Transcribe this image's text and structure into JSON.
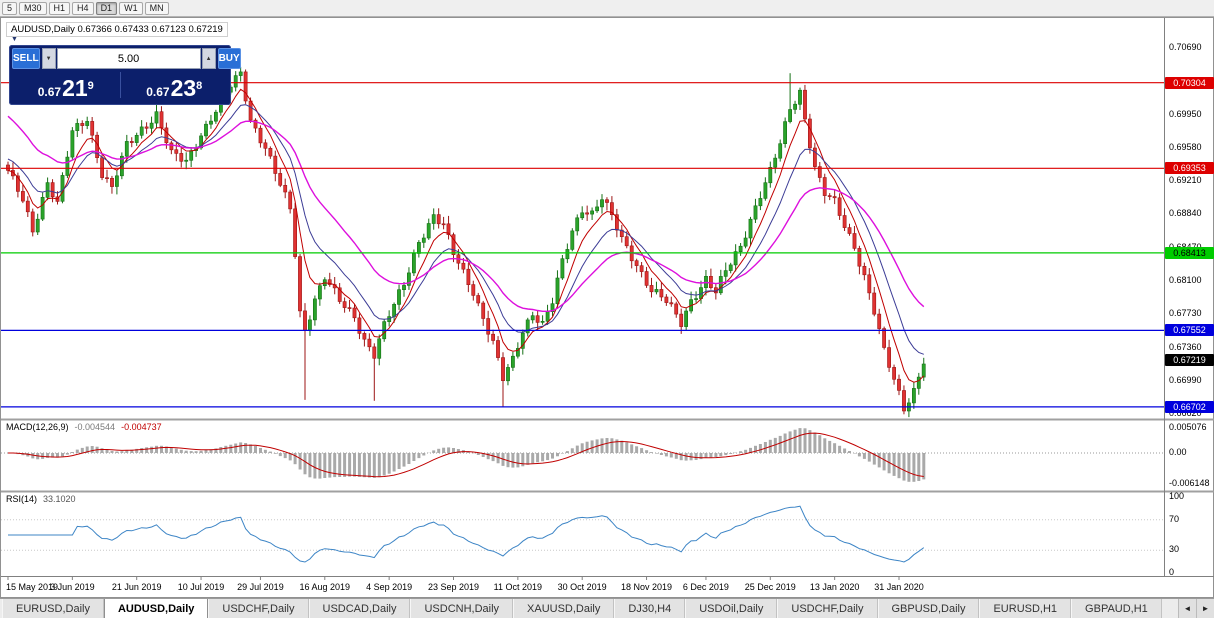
{
  "toolbar": {
    "timeframes": [
      {
        "label": "5",
        "active": false
      },
      {
        "label": "M30",
        "active": false
      },
      {
        "label": "H1",
        "active": false
      },
      {
        "label": "H4",
        "active": false
      },
      {
        "label": "D1",
        "active": true
      },
      {
        "label": "W1",
        "active": false
      },
      {
        "label": "MN",
        "active": false
      }
    ]
  },
  "header": {
    "title": "AUDUSD,Daily  0.67366 0.67433 0.67123 0.67219"
  },
  "trade_panel": {
    "sell_label": "SELL",
    "buy_label": "BUY",
    "lot_size": "5.00",
    "spin_down_icon": "▼",
    "spin_up_icon": "▲",
    "collapse_icon": "▼",
    "sell_price": {
      "base": "0.67",
      "main": "21",
      "sup": "9"
    },
    "buy_price": {
      "base": "0.67",
      "main": "23",
      "sup": "8"
    }
  },
  "price_axis": {
    "labels": [
      "0.70690",
      "0.69950",
      "0.69580",
      "0.69210",
      "0.68840",
      "0.68470",
      "0.68100",
      "0.67730",
      "0.67360",
      "0.66990",
      "0.66620"
    ]
  },
  "date_axis": [
    "15 May 2019",
    "3 Jun 2019",
    "21 Jun 2019",
    "10 Jul 2019",
    "29 Jul 2019",
    "16 Aug 2019",
    "4 Sep 2019",
    "23 Sep 2019",
    "11 Oct 2019",
    "30 Oct 2019",
    "18 Nov 2019",
    "6 Dec 2019",
    "25 Dec 2019",
    "13 Jan 2020",
    "31 Jan 2020"
  ],
  "tabs": {
    "items": [
      "EURUSD,Daily",
      "AUDUSD,Daily",
      "USDCHF,Daily",
      "USDCAD,Daily",
      "USDCNH,Daily",
      "XAUUSD,Daily",
      "DJ30,H4",
      "USDOil,Daily",
      "USDCHF,Daily",
      "GBPUSD,Daily",
      "EURUSD,H1",
      "GBPAUD,H1"
    ],
    "active_index": 1,
    "scroll_left_icon": "◄",
    "scroll_right_icon": "►"
  },
  "colors": {
    "up_fill": "#2aa32a",
    "up_stroke": "#157015",
    "down_fill": "#e03232",
    "down_stroke": "#9c1616",
    "macd_hist": "#a9a9a9",
    "macd_signal": "#c00000",
    "rsi": "#3d85c6"
  },
  "chart_data": {
    "type": "candlestick",
    "symbol": "AUDUSD",
    "period": "Daily",
    "ohlc_current": {
      "open": "0.67366",
      "high": "0.67433",
      "low": "0.67123",
      "close": "0.67219"
    },
    "n_candles": 186,
    "price_top": 0.7099,
    "price_bottom": 0.6659,
    "anchors": [
      [
        0,
        0.693
      ],
      [
        3,
        0.69
      ],
      [
        5,
        0.6868
      ],
      [
        8,
        0.692
      ],
      [
        10,
        0.6895
      ],
      [
        13,
        0.6975
      ],
      [
        16,
        0.6992
      ],
      [
        19,
        0.693
      ],
      [
        21,
        0.6912
      ],
      [
        24,
        0.696
      ],
      [
        27,
        0.698
      ],
      [
        30,
        0.6996
      ],
      [
        33,
        0.695
      ],
      [
        36,
        0.6942
      ],
      [
        39,
        0.6975
      ],
      [
        42,
        0.7
      ],
      [
        45,
        0.7026
      ],
      [
        47,
        0.704
      ],
      [
        49,
        0.699
      ],
      [
        52,
        0.696
      ],
      [
        54,
        0.693
      ],
      [
        57,
        0.6888
      ],
      [
        58,
        0.684
      ],
      [
        59,
        0.6775
      ],
      [
        60,
        0.6756
      ],
      [
        62,
        0.6792
      ],
      [
        64,
        0.6815
      ],
      [
        67,
        0.6786
      ],
      [
        70,
        0.677
      ],
      [
        72,
        0.6746
      ],
      [
        74,
        0.673
      ],
      [
        76,
        0.676
      ],
      [
        78,
        0.6782
      ],
      [
        80,
        0.6806
      ],
      [
        83,
        0.6856
      ],
      [
        86,
        0.6882
      ],
      [
        88,
        0.687
      ],
      [
        90,
        0.684
      ],
      [
        92,
        0.682
      ],
      [
        94,
        0.68
      ],
      [
        96,
        0.677
      ],
      [
        98,
        0.674
      ],
      [
        100,
        0.67
      ],
      [
        102,
        0.6722
      ],
      [
        104,
        0.6756
      ],
      [
        106,
        0.6776
      ],
      [
        108,
        0.6762
      ],
      [
        110,
        0.6786
      ],
      [
        112,
        0.683
      ],
      [
        114,
        0.6866
      ],
      [
        116,
        0.6892
      ],
      [
        118,
        0.6886
      ],
      [
        120,
        0.6902
      ],
      [
        122,
        0.688
      ],
      [
        124,
        0.6856
      ],
      [
        127,
        0.683
      ],
      [
        130,
        0.68
      ],
      [
        133,
        0.6786
      ],
      [
        136,
        0.6764
      ],
      [
        138,
        0.679
      ],
      [
        141,
        0.6812
      ],
      [
        143,
        0.6796
      ],
      [
        145,
        0.682
      ],
      [
        148,
        0.685
      ],
      [
        150,
        0.688
      ],
      [
        152,
        0.6906
      ],
      [
        154,
        0.693
      ],
      [
        156,
        0.6962
      ],
      [
        158,
        0.7002
      ],
      [
        160,
        0.7022
      ],
      [
        161,
        0.6992
      ],
      [
        163,
        0.6936
      ],
      [
        165,
        0.6906
      ],
      [
        167,
        0.6896
      ],
      [
        169,
        0.6872
      ],
      [
        171,
        0.685
      ],
      [
        173,
        0.6816
      ],
      [
        175,
        0.6776
      ],
      [
        177,
        0.673
      ],
      [
        179,
        0.67
      ],
      [
        181,
        0.667
      ],
      [
        183,
        0.669
      ],
      [
        185,
        0.6722
      ]
    ],
    "wicks": [
      {
        "i": 47,
        "high": 0.7048
      },
      {
        "i": 60,
        "low": 0.6678
      },
      {
        "i": 74,
        "low": 0.6677
      },
      {
        "i": 100,
        "low": 0.667
      },
      {
        "i": 158,
        "high": 0.7041
      },
      {
        "i": 181,
        "low": 0.6662
      }
    ],
    "moving_averages": [
      {
        "period": 6,
        "color": "#c00000",
        "width": 1
      },
      {
        "period": 12,
        "color": "#3c3c96",
        "width": 1,
        "seed": 0.6948
      },
      {
        "period": 26,
        "color": "#dd10dd",
        "width": 1.4,
        "seed": 0.6998
      }
    ],
    "hlines": [
      {
        "price": 0.70304,
        "label": "0.70304",
        "color": "#dd0000"
      },
      {
        "price": 0.69353,
        "label": "0.69353",
        "color": "#dd0000"
      },
      {
        "price": 0.68413,
        "label": "0.68413",
        "color": "#00cc00",
        "text_color": "#000000"
      },
      {
        "price": 0.67552,
        "label": "0.67552",
        "color": "#0000dd"
      },
      {
        "price": 0.66702,
        "label": "0.66702",
        "color": "#0000dd"
      }
    ],
    "current_price": {
      "label": "0.67219",
      "value": 0.67219,
      "color": "#000000"
    },
    "macd": {
      "name": "MACD(12,26,9)",
      "value_main": "-0.004544",
      "value_signal": "-0.004737",
      "axis": [
        {
          "text": "0.005076",
          "value": 0.005076
        },
        {
          "text": "0.00",
          "value": 0
        },
        {
          "text": "-0.006148",
          "value": -0.006148
        }
      ]
    },
    "rsi": {
      "name": "RSI(14)",
      "value": "33.1020",
      "levels": [
        70,
        30
      ],
      "axis": [
        {
          "text": "100",
          "value": 100
        },
        {
          "text": "70",
          "value": 70
        },
        {
          "text": "30",
          "value": 30
        },
        {
          "text": "0",
          "value": 0
        }
      ]
    }
  }
}
